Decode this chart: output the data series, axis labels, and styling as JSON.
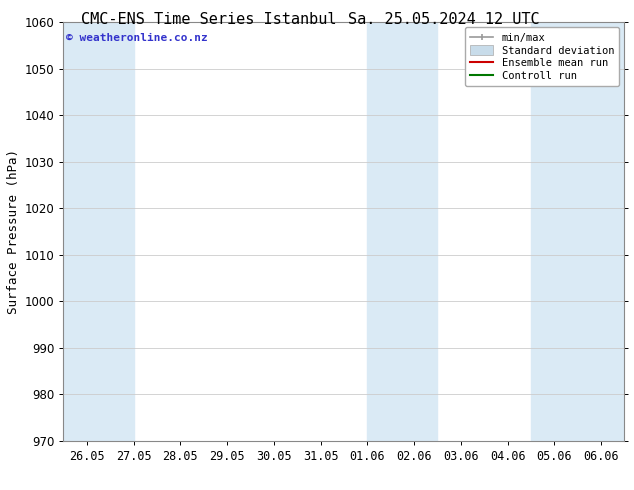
{
  "title_left": "CMC-ENS Time Series Istanbul",
  "title_right": "Sa. 25.05.2024 12 UTC",
  "ylabel": "Surface Pressure (hPa)",
  "ylim": [
    970,
    1060
  ],
  "yticks": [
    970,
    980,
    990,
    1000,
    1010,
    1020,
    1030,
    1040,
    1050,
    1060
  ],
  "xtick_labels": [
    "26.05",
    "27.05",
    "28.05",
    "29.05",
    "30.05",
    "31.05",
    "01.06",
    "02.06",
    "03.06",
    "04.06",
    "05.06",
    "06.06"
  ],
  "xtick_positions": [
    0,
    1,
    2,
    3,
    4,
    5,
    6,
    7,
    8,
    9,
    10,
    11
  ],
  "xlim": [
    -0.5,
    11.5
  ],
  "shaded_bands": [
    {
      "x_start": -0.5,
      "x_end": 1.0
    },
    {
      "x_start": 6.0,
      "x_end": 7.5
    },
    {
      "x_start": 9.5,
      "x_end": 11.5
    }
  ],
  "shade_color": "#daeaf5",
  "watermark_text": "© weatheronline.co.nz",
  "watermark_color": "#3333cc",
  "legend_items": [
    {
      "label": "min/max",
      "color": "#999999",
      "type": "errorbar"
    },
    {
      "label": "Standard deviation",
      "color": "#c8dcea",
      "type": "fill"
    },
    {
      "label": "Ensemble mean run",
      "color": "#cc0000",
      "type": "line"
    },
    {
      "label": "Controll run",
      "color": "#007700",
      "type": "line"
    }
  ],
  "bg_color": "#ffffff",
  "plot_bg_color": "#ffffff",
  "grid_color": "#cccccc",
  "title_fontsize": 11,
  "axis_label_fontsize": 9,
  "tick_fontsize": 8.5,
  "legend_fontsize": 7.5
}
